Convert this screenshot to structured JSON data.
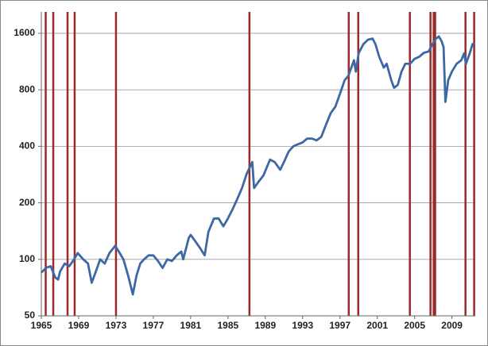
{
  "chart_data": {
    "type": "line",
    "log_y": true,
    "grid": true,
    "xlim": [
      1965,
      2011.5
    ],
    "ylim": [
      50,
      2080
    ],
    "xticks": [
      1965,
      1969,
      1973,
      1977,
      1981,
      1985,
      1989,
      1993,
      1997,
      2001,
      2005,
      2009
    ],
    "yticks": [
      50,
      100,
      200,
      400,
      800,
      1600
    ],
    "vline_color": "#9b2a2a",
    "vlines": [
      1965.47,
      1966.28,
      1967.81,
      1968.57,
      1973.0,
      1987.3,
      1997.94,
      1998.96,
      2004.49,
      2006.7,
      2007.04,
      2007.2,
      2010.45,
      2011.38
    ],
    "series": [
      {
        "color": "#3c68a6",
        "x": [
          1965.0,
          1965.5,
          1966.0,
          1966.5,
          1966.8,
          1967.0,
          1967.5,
          1968.0,
          1968.5,
          1968.9,
          1969.5,
          1970.0,
          1970.4,
          1970.8,
          1971.3,
          1971.8,
          1972.3,
          1972.9,
          1973.3,
          1973.8,
          1974.3,
          1974.8,
          1975.2,
          1975.6,
          1976.0,
          1976.5,
          1977.0,
          1977.5,
          1978.0,
          1978.5,
          1979.0,
          1979.5,
          1980.0,
          1980.2,
          1980.8,
          1981.0,
          1981.5,
          1982.0,
          1982.5,
          1982.9,
          1983.5,
          1984.0,
          1984.5,
          1985.0,
          1985.5,
          1986.0,
          1986.5,
          1987.0,
          1987.6,
          1987.8,
          1988.3,
          1988.8,
          1989.5,
          1990.0,
          1990.6,
          1991.0,
          1991.5,
          1992.0,
          1992.5,
          1993.0,
          1993.5,
          1994.0,
          1994.5,
          1995.0,
          1995.5,
          1996.0,
          1996.5,
          1997.0,
          1997.5,
          1997.9,
          1998.5,
          1998.7,
          1999.0,
          1999.5,
          2000.0,
          2000.5,
          2000.8,
          2001.2,
          2001.7,
          2002.0,
          2002.5,
          2002.8,
          2003.2,
          2003.6,
          2004.0,
          2004.5,
          2005.0,
          2005.5,
          2006.0,
          2006.5,
          2006.9,
          2007.3,
          2007.6,
          2007.9,
          2008.1,
          2008.3,
          2008.6,
          2009.0,
          2009.5,
          2010.0,
          2010.3,
          2010.5,
          2010.9,
          2011.2,
          2011.4
        ],
        "values": [
          85,
          90,
          92,
          80,
          78,
          86,
          95,
          92,
          100,
          108,
          100,
          95,
          75,
          85,
          100,
          95,
          108,
          118,
          110,
          100,
          82,
          65,
          82,
          95,
          100,
          105,
          105,
          98,
          90,
          100,
          98,
          105,
          110,
          100,
          130,
          135,
          125,
          115,
          105,
          140,
          165,
          165,
          150,
          165,
          185,
          210,
          240,
          285,
          330,
          240,
          260,
          280,
          340,
          330,
          300,
          330,
          375,
          400,
          410,
          420,
          440,
          440,
          430,
          450,
          520,
          600,
          650,
          760,
          900,
          950,
          1150,
          1000,
          1250,
          1400,
          1480,
          1500,
          1400,
          1200,
          1050,
          1100,
          900,
          820,
          850,
          1000,
          1100,
          1100,
          1170,
          1200,
          1260,
          1280,
          1400,
          1500,
          1540,
          1450,
          1350,
          690,
          900,
          1000,
          1100,
          1150,
          1250,
          1100,
          1250,
          1400,
          1420
        ]
      }
    ]
  }
}
